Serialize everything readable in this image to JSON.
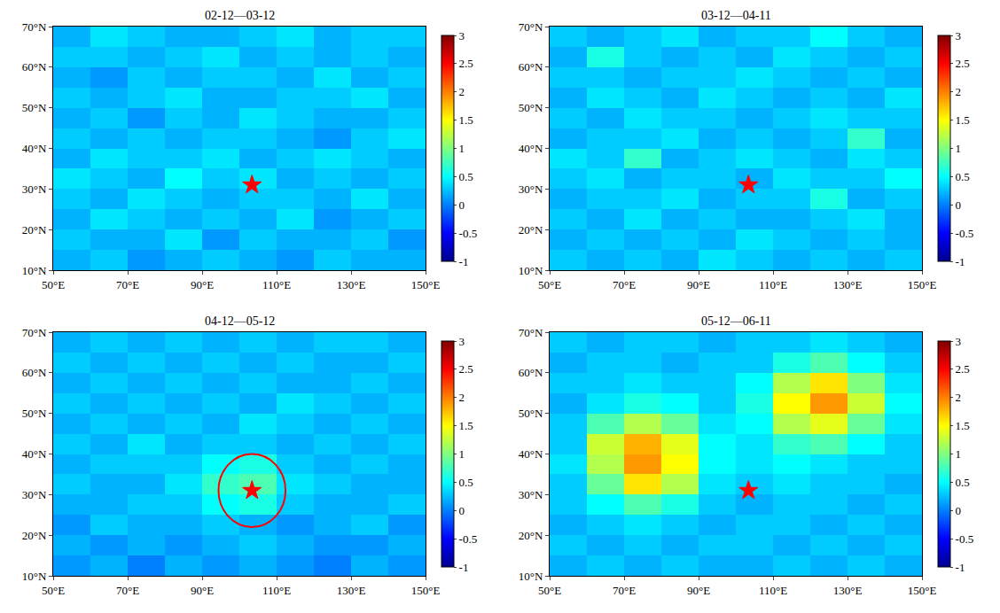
{
  "chart_data": [
    {
      "type": "heatmap",
      "title": "02-12—03-12",
      "x": [
        55,
        65,
        75,
        85,
        95,
        105,
        115,
        125,
        135,
        145
      ],
      "y": [
        12.5,
        17.5,
        22.5,
        27.5,
        32.5,
        37.5,
        42.5,
        47.5,
        52.5,
        57.5,
        62.5,
        67.5
      ],
      "z": [
        [
          0.2,
          0.3,
          0.1,
          0.2,
          0.3,
          0.2,
          0.1,
          0.3,
          0.2,
          0.2
        ],
        [
          0.3,
          0.2,
          0.2,
          0.4,
          0.1,
          0.3,
          0.2,
          0.2,
          0.3,
          0.1
        ],
        [
          0.2,
          0.4,
          0.3,
          0.2,
          0.3,
          0.2,
          0.4,
          0.1,
          0.2,
          0.3
        ],
        [
          0.3,
          0.2,
          0.4,
          0.3,
          0.2,
          0.3,
          0.3,
          0.2,
          0.4,
          0.2
        ],
        [
          0.4,
          0.3,
          0.2,
          0.5,
          0.3,
          0.4,
          0.2,
          0.3,
          0.2,
          0.3
        ],
        [
          0.2,
          0.4,
          0.3,
          0.3,
          0.4,
          0.2,
          0.3,
          0.4,
          0.3,
          0.2
        ],
        [
          0.3,
          0.2,
          0.3,
          0.2,
          0.3,
          0.3,
          0.2,
          0.1,
          0.3,
          0.4
        ],
        [
          0.2,
          0.3,
          0.1,
          0.3,
          0.2,
          0.4,
          0.3,
          0.2,
          0.2,
          0.3
        ],
        [
          0.3,
          0.2,
          0.3,
          0.4,
          0.2,
          0.2,
          0.3,
          0.3,
          0.4,
          0.2
        ],
        [
          0.2,
          0.1,
          0.3,
          0.2,
          0.3,
          0.3,
          0.2,
          0.4,
          0.2,
          0.3
        ],
        [
          0.3,
          0.3,
          0.2,
          0.3,
          0.4,
          0.2,
          0.3,
          0.2,
          0.3,
          0.2
        ],
        [
          0.2,
          0.4,
          0.3,
          0.2,
          0.2,
          0.3,
          0.4,
          0.2,
          0.3,
          0.3
        ]
      ],
      "xlim": [
        50,
        150
      ],
      "xticks": [
        {
          "value": 50,
          "label": "50°E"
        },
        {
          "value": 70,
          "label": "70°E"
        },
        {
          "value": 90,
          "label": "90°E"
        },
        {
          "value": 110,
          "label": "110°E"
        },
        {
          "value": 130,
          "label": "130°E"
        },
        {
          "value": 150,
          "label": "150°E"
        }
      ],
      "ylim": [
        10,
        70
      ],
      "yticks": [
        {
          "value": 10,
          "label": "10°N"
        },
        {
          "value": 20,
          "label": "20°N"
        },
        {
          "value": 30,
          "label": "30°N"
        },
        {
          "value": 40,
          "label": "40°N"
        },
        {
          "value": 50,
          "label": "50°N"
        },
        {
          "value": 60,
          "label": "60°N"
        },
        {
          "value": 70,
          "label": "70°N"
        }
      ],
      "zlim": [
        -1,
        3
      ],
      "zticks": [
        -1,
        -0.5,
        0,
        0.5,
        1,
        1.5,
        2,
        2.5,
        3
      ],
      "epicenter": {
        "lon": 103.4,
        "lat": 31.0,
        "marker": "star",
        "color": "#ff0000"
      }
    },
    {
      "type": "heatmap",
      "title": "03-12—04-11",
      "x": [
        55,
        65,
        75,
        85,
        95,
        105,
        115,
        125,
        135,
        145
      ],
      "y": [
        12.5,
        17.5,
        22.5,
        27.5,
        32.5,
        37.5,
        42.5,
        47.5,
        52.5,
        57.5,
        62.5,
        67.5
      ],
      "z": [
        [
          0.3,
          0.2,
          0.3,
          0.2,
          0.4,
          0.3,
          0.2,
          0.3,
          0.2,
          0.3
        ],
        [
          0.2,
          0.3,
          0.2,
          0.3,
          0.2,
          0.4,
          0.3,
          0.2,
          0.3,
          0.2
        ],
        [
          0.3,
          0.2,
          0.4,
          0.2,
          0.3,
          0.2,
          0.2,
          0.3,
          0.4,
          0.2
        ],
        [
          0.2,
          0.3,
          0.3,
          0.4,
          0.2,
          0.3,
          0.3,
          0.6,
          0.2,
          0.3
        ],
        [
          0.3,
          0.4,
          0.2,
          0.3,
          0.3,
          0.2,
          0.4,
          0.3,
          0.3,
          0.5
        ],
        [
          0.4,
          0.3,
          0.7,
          0.2,
          0.3,
          0.4,
          0.3,
          0.2,
          0.4,
          0.3
        ],
        [
          0.2,
          0.3,
          0.3,
          0.4,
          0.2,
          0.3,
          0.2,
          0.3,
          0.7,
          0.2
        ],
        [
          0.3,
          0.2,
          0.4,
          0.3,
          0.3,
          0.2,
          0.3,
          0.4,
          0.3,
          0.3
        ],
        [
          0.2,
          0.4,
          0.3,
          0.2,
          0.4,
          0.3,
          0.2,
          0.3,
          0.2,
          0.4
        ],
        [
          0.3,
          0.3,
          0.2,
          0.3,
          0.3,
          0.4,
          0.3,
          0.2,
          0.3,
          0.2
        ],
        [
          0.2,
          0.6,
          0.3,
          0.2,
          0.3,
          0.2,
          0.4,
          0.3,
          0.2,
          0.3
        ],
        [
          0.3,
          0.2,
          0.3,
          0.4,
          0.2,
          0.3,
          0.3,
          0.5,
          0.3,
          0.2
        ]
      ],
      "xlim": [
        50,
        150
      ],
      "xticks": [
        {
          "value": 50,
          "label": "50°E"
        },
        {
          "value": 70,
          "label": "70°E"
        },
        {
          "value": 90,
          "label": "90°E"
        },
        {
          "value": 110,
          "label": "110°E"
        },
        {
          "value": 130,
          "label": "130°E"
        },
        {
          "value": 150,
          "label": "150°E"
        }
      ],
      "ylim": [
        10,
        70
      ],
      "yticks": [
        {
          "value": 10,
          "label": "10°N"
        },
        {
          "value": 20,
          "label": "20°N"
        },
        {
          "value": 30,
          "label": "30°N"
        },
        {
          "value": 40,
          "label": "40°N"
        },
        {
          "value": 50,
          "label": "50°N"
        },
        {
          "value": 60,
          "label": "60°N"
        },
        {
          "value": 70,
          "label": "70°N"
        }
      ],
      "zlim": [
        -1,
        3
      ],
      "zticks": [
        -1,
        -0.5,
        0,
        0.5,
        1,
        1.5,
        2,
        2.5,
        3
      ],
      "epicenter": {
        "lon": 103.4,
        "lat": 31.0,
        "marker": "star",
        "color": "#ff0000"
      }
    },
    {
      "type": "heatmap",
      "title": "04-12—05-12",
      "x": [
        55,
        65,
        75,
        85,
        95,
        105,
        115,
        125,
        135,
        145
      ],
      "y": [
        12.5,
        17.5,
        22.5,
        27.5,
        32.5,
        37.5,
        42.5,
        47.5,
        52.5,
        57.5,
        62.5,
        67.5
      ],
      "z": [
        [
          0.1,
          0.2,
          0.0,
          0.2,
          0.1,
          0.2,
          0.1,
          0.0,
          0.2,
          0.1
        ],
        [
          0.2,
          0.1,
          0.2,
          0.1,
          0.2,
          0.3,
          0.2,
          0.1,
          0.1,
          0.2
        ],
        [
          0.1,
          0.3,
          0.2,
          0.2,
          0.3,
          0.2,
          0.1,
          0.2,
          0.3,
          0.1
        ],
        [
          0.2,
          0.2,
          0.3,
          0.3,
          0.5,
          0.6,
          0.3,
          0.2,
          0.2,
          0.3
        ],
        [
          0.3,
          0.2,
          0.2,
          0.4,
          0.7,
          0.8,
          0.4,
          0.3,
          0.2,
          0.2
        ],
        [
          0.2,
          0.3,
          0.3,
          0.3,
          0.5,
          0.6,
          0.3,
          0.2,
          0.3,
          0.2
        ],
        [
          0.3,
          0.2,
          0.4,
          0.2,
          0.3,
          0.3,
          0.2,
          0.3,
          0.2,
          0.3
        ],
        [
          0.2,
          0.3,
          0.2,
          0.3,
          0.2,
          0.4,
          0.3,
          0.2,
          0.3,
          0.2
        ],
        [
          0.3,
          0.2,
          0.3,
          0.2,
          0.3,
          0.2,
          0.4,
          0.3,
          0.2,
          0.3
        ],
        [
          0.2,
          0.3,
          0.2,
          0.3,
          0.2,
          0.3,
          0.2,
          0.2,
          0.3,
          0.2
        ],
        [
          0.3,
          0.2,
          0.3,
          0.2,
          0.3,
          0.2,
          0.3,
          0.2,
          0.2,
          0.3
        ],
        [
          0.2,
          0.3,
          0.2,
          0.3,
          0.2,
          0.3,
          0.2,
          0.3,
          0.3,
          0.2
        ]
      ],
      "xlim": [
        50,
        150
      ],
      "xticks": [
        {
          "value": 50,
          "label": "50°E"
        },
        {
          "value": 70,
          "label": "70°E"
        },
        {
          "value": 90,
          "label": "90°E"
        },
        {
          "value": 110,
          "label": "110°E"
        },
        {
          "value": 130,
          "label": "130°E"
        },
        {
          "value": 150,
          "label": "150°E"
        }
      ],
      "ylim": [
        10,
        70
      ],
      "yticks": [
        {
          "value": 10,
          "label": "10°N"
        },
        {
          "value": 20,
          "label": "20°N"
        },
        {
          "value": 30,
          "label": "30°N"
        },
        {
          "value": 40,
          "label": "40°N"
        },
        {
          "value": 50,
          "label": "50°N"
        },
        {
          "value": 60,
          "label": "60°N"
        },
        {
          "value": 70,
          "label": "70°N"
        }
      ],
      "zlim": [
        -1,
        3
      ],
      "zticks": [
        -1,
        -0.5,
        0,
        0.5,
        1,
        1.5,
        2,
        2.5,
        3
      ],
      "epicenter": {
        "lon": 103.4,
        "lat": 31.0,
        "marker": "star",
        "color": "#ff0000"
      },
      "circle_radius": 9
    },
    {
      "type": "heatmap",
      "title": "05-12—06-11",
      "x": [
        55,
        65,
        75,
        85,
        95,
        105,
        115,
        125,
        135,
        145
      ],
      "y": [
        12.5,
        17.5,
        22.5,
        27.5,
        32.5,
        37.5,
        42.5,
        47.5,
        52.5,
        57.5,
        62.5,
        67.5
      ],
      "z": [
        [
          0.2,
          0.3,
          0.2,
          0.3,
          0.2,
          0.2,
          0.3,
          0.2,
          0.3,
          0.2
        ],
        [
          0.3,
          0.2,
          0.3,
          0.2,
          0.3,
          0.3,
          0.2,
          0.3,
          0.2,
          0.3
        ],
        [
          0.2,
          0.3,
          0.4,
          0.3,
          0.2,
          0.3,
          0.3,
          0.2,
          0.3,
          0.2
        ],
        [
          0.3,
          0.5,
          0.8,
          0.6,
          0.3,
          0.2,
          0.3,
          0.3,
          0.2,
          0.3
        ],
        [
          0.3,
          0.9,
          1.6,
          1.2,
          0.4,
          0.3,
          0.4,
          0.3,
          0.3,
          0.2
        ],
        [
          0.4,
          1.2,
          1.9,
          1.5,
          0.5,
          0.4,
          0.5,
          0.4,
          0.3,
          0.3
        ],
        [
          0.3,
          1.3,
          1.8,
          1.4,
          0.5,
          0.4,
          0.7,
          0.8,
          0.5,
          0.3
        ],
        [
          0.3,
          0.8,
          1.2,
          0.9,
          0.4,
          0.5,
          1.2,
          1.4,
          0.9,
          0.4
        ],
        [
          0.2,
          0.4,
          0.6,
          0.5,
          0.3,
          0.6,
          1.5,
          1.9,
          1.3,
          0.5
        ],
        [
          0.3,
          0.3,
          0.4,
          0.3,
          0.3,
          0.5,
          1.2,
          1.6,
          1.0,
          0.4
        ],
        [
          0.2,
          0.3,
          0.3,
          0.2,
          0.3,
          0.3,
          0.6,
          0.8,
          0.5,
          0.3
        ],
        [
          0.3,
          0.2,
          0.3,
          0.3,
          0.2,
          0.3,
          0.3,
          0.4,
          0.3,
          0.2
        ]
      ],
      "xlim": [
        50,
        150
      ],
      "xticks": [
        {
          "value": 50,
          "label": "50°E"
        },
        {
          "value": 70,
          "label": "70°E"
        },
        {
          "value": 90,
          "label": "90°E"
        },
        {
          "value": 110,
          "label": "110°E"
        },
        {
          "value": 130,
          "label": "130°E"
        },
        {
          "value": 150,
          "label": "150°E"
        }
      ],
      "ylim": [
        10,
        70
      ],
      "yticks": [
        {
          "value": 10,
          "label": "10°N"
        },
        {
          "value": 20,
          "label": "20°N"
        },
        {
          "value": 30,
          "label": "30°N"
        },
        {
          "value": 40,
          "label": "40°N"
        },
        {
          "value": 50,
          "label": "50°N"
        },
        {
          "value": 60,
          "label": "60°N"
        },
        {
          "value": 70,
          "label": "70°N"
        }
      ],
      "zlim": [
        -1,
        3
      ],
      "zticks": [
        -1,
        -0.5,
        0,
        0.5,
        1,
        1.5,
        2,
        2.5,
        3
      ],
      "epicenter": {
        "lon": 103.4,
        "lat": 31.0,
        "marker": "star",
        "color": "#ff0000"
      }
    }
  ]
}
